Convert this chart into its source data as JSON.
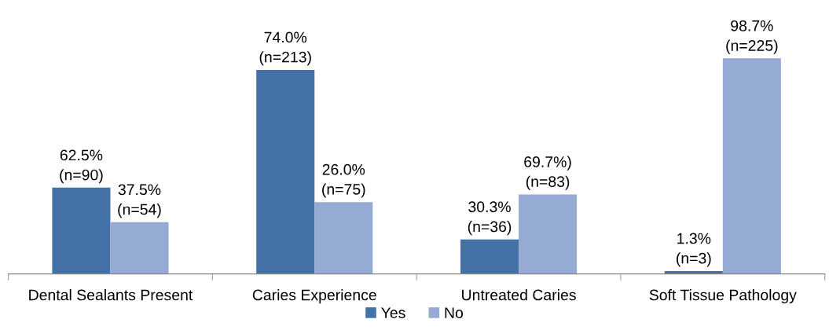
{
  "chart_data": {
    "type": "bar",
    "categories": [
      "Dental Sealants Present",
      "Caries Experience",
      "Untreated Caries",
      "Soft Tissue Pathology"
    ],
    "series": [
      {
        "name": "Yes",
        "color": "#4472a8",
        "values": [
          90,
          213,
          36,
          3
        ],
        "value_labels": [
          "62.5%\n(n=90)",
          "74.0%\n(n=213)",
          "30.3%\n(n=36)",
          "1.3%\n(n=3)"
        ]
      },
      {
        "name": "No",
        "color": "#95abd3",
        "values": [
          54,
          75,
          83,
          225
        ],
        "value_labels": [
          "37.5%\n(n=54)",
          "26.0%\n(n=75)",
          "69.7%)\n(n=83)",
          "98.7%\n(n=225)"
        ]
      }
    ],
    "legend": "bottom",
    "grid": false
  }
}
